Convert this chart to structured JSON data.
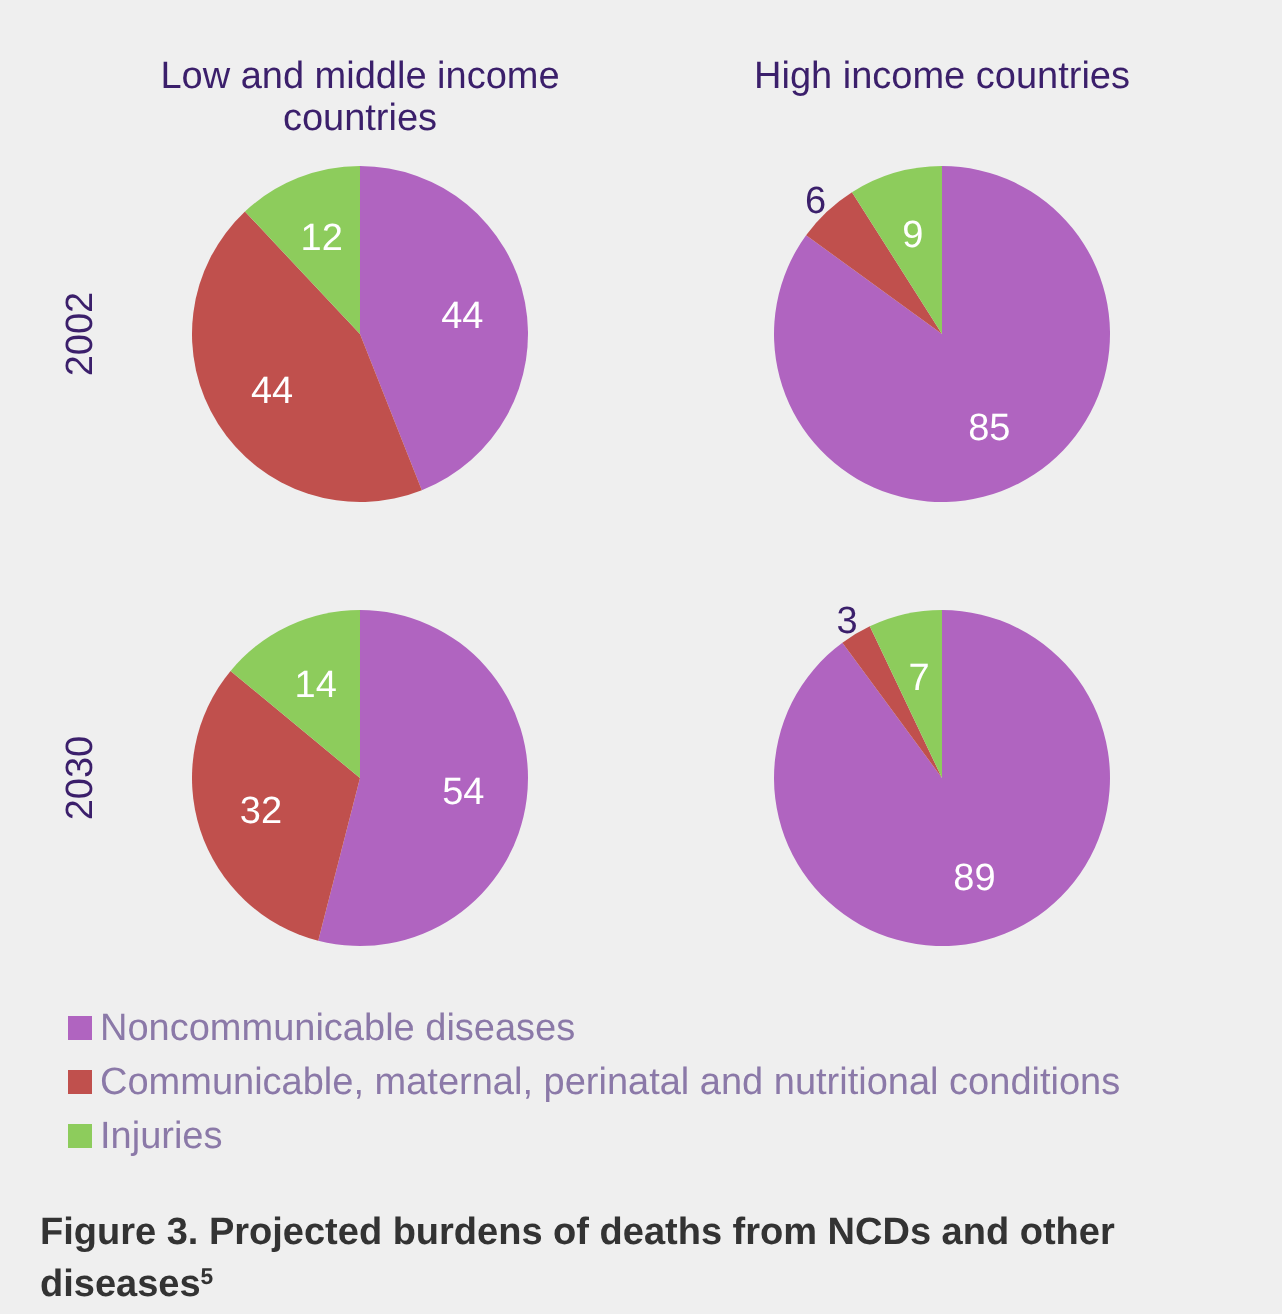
{
  "chart_data": [
    {
      "type": "pie",
      "title": "Low and middle income countries",
      "ylabel": "2002",
      "categories": [
        "Noncommunicable diseases",
        "Communicable, maternal, perinatal and nutritional conditions",
        "Injuries"
      ],
      "values": [
        44,
        44,
        12
      ],
      "colors": [
        "#b064c0",
        "#c0504d",
        "#8dcc5c"
      ],
      "data_labels": true,
      "legend": "bottom",
      "annotations": [
        "Figure 3. Projected burdens of deaths from NCDs and other diseases$^{5}$"
      ]
    },
    {
      "type": "pie",
      "title": "High income countries",
      "categories": [
        null,
        null,
        null
      ],
      "values": [
        85,
        6,
        9
      ],
      "colors": [
        "#b064c0",
        "#c0504d",
        "#8dcc5c"
      ],
      "data_labels": true
    },
    {
      "type": "pie",
      "ylabel": "2030",
      "categories": [
        null,
        null,
        null
      ],
      "values": [
        54,
        32,
        14
      ],
      "colors": [
        "#b064c0",
        "#c0504d",
        "#8dcc5c"
      ],
      "data_labels": true
    },
    {
      "type": "pie",
      "categories": [
        null,
        null,
        null
      ],
      "values": [
        89,
        3,
        7
      ],
      "colors": [
        "#b064c0",
        "#c0504d",
        "#8dcc5c"
      ],
      "data_labels": true
    }
  ]
}
